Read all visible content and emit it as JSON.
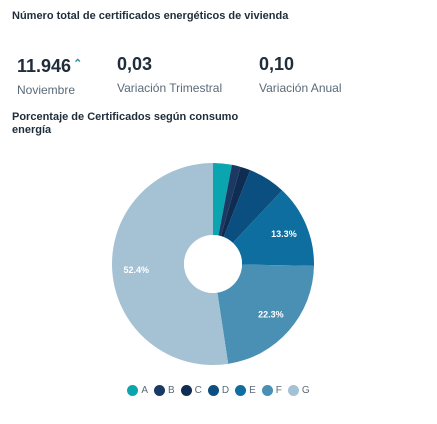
{
  "kpi": {
    "title": "Número total de certificados energéticos de vivienda",
    "total_value": "11.946",
    "total_trend": "⌃",
    "total_label": "Noviembre",
    "quarterly_value": "0,03",
    "quarterly_label": "Variación Trimestral",
    "annual_value": "0,10",
    "annual_label": "Variación Anual"
  },
  "chart_data": {
    "type": "pie",
    "title": "Porcentaje de Certificados según consumo energía",
    "categories": [
      "A",
      "B",
      "C",
      "D",
      "E",
      "F",
      "G"
    ],
    "values": [
      3.0,
      1.4,
      1.6,
      6.0,
      13.3,
      22.3,
      52.4
    ],
    "data_labels": [
      "",
      "",
      "",
      "",
      "13.3%",
      "22.3%",
      "52.4%"
    ],
    "colors": [
      "#0aa5ae",
      "#1b3a63",
      "#0f2d52",
      "#0b4e80",
      "#0e6ea0",
      "#4a90b4",
      "#a4c2d4"
    ],
    "legend_position": "bottom"
  }
}
